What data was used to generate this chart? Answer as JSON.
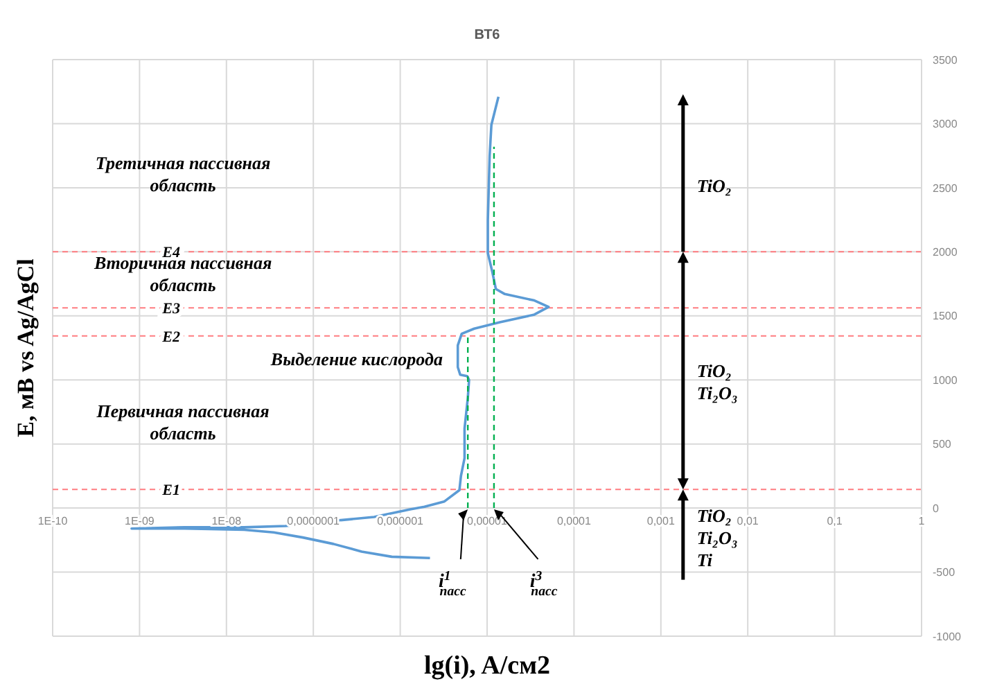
{
  "chart_data": {
    "type": "line",
    "title": "ВТ6",
    "xlabel": "lg(i), A/см2",
    "ylabel": "E, мВ vs Ag/AgCl",
    "log": "x",
    "grid": true,
    "legend": false,
    "marker": "none",
    "xlim": [
      1e-10,
      1
    ],
    "xticks": [
      {
        "value": 1e-10,
        "label": "1E-10"
      },
      {
        "value": 1e-09,
        "label": "1E-09"
      },
      {
        "value": 1e-08,
        "label": "1E-08"
      },
      {
        "value": 1e-07,
        "label": "0,0000001"
      },
      {
        "value": 1e-06,
        "label": "0,000001"
      },
      {
        "value": 1e-05,
        "label": "0,00001"
      },
      {
        "value": 0.0001,
        "label": "0,0001"
      },
      {
        "value": 0.001,
        "label": "0,001"
      },
      {
        "value": 0.01,
        "label": "0,01"
      },
      {
        "value": 0.1,
        "label": "0,1"
      },
      {
        "value": 1,
        "label": "1"
      }
    ],
    "ylim": [
      -1000,
      3500
    ],
    "yticks": [
      -1000,
      -500,
      0,
      500,
      1000,
      1500,
      2000,
      2500,
      3000,
      3500
    ],
    "series": [
      {
        "color": "#5b9bd5",
        "line_style": "solid",
        "x": [
          2.2e-06,
          8e-07,
          3.6e-07,
          1.7e-07,
          7.6e-08,
          3.5e-08,
          1.6e-08,
          3.3e-09,
          8.1e-10,
          3.3e-09,
          1.6e-08,
          4.8e-08,
          1.7e-07,
          5e-07,
          1.3e-06,
          1.9e-06,
          3.2e-06,
          4.8e-06,
          5e-06,
          5.5e-06,
          5.5e-06,
          6e-06,
          6.2e-06,
          5.9e-06,
          4.9e-06,
          4.6e-06,
          4.6e-06,
          5.1e-06,
          7.1e-06,
          1.4e-05,
          3.5e-05,
          5.1e-05,
          3.5e-05,
          1.6e-05,
          1.26e-05,
          1.15e-05,
          1.02e-05,
          1.02e-05,
          1.07e-05,
          1.12e-05,
          1.35e-05
        ],
        "values": [
          -390,
          -380,
          -340,
          -280,
          -230,
          -190,
          -170,
          -160,
          -160,
          -150,
          -150,
          -140,
          -100,
          -70,
          -10,
          10,
          50,
          140,
          250,
          390,
          620,
          860,
          1000,
          1030,
          1040,
          1100,
          1270,
          1360,
          1400,
          1450,
          1510,
          1570,
          1620,
          1670,
          1710,
          1840,
          1990,
          2250,
          2750,
          2990,
          3210
        ]
      },
      {
        "color": "#00b050",
        "line_style": "dashed",
        "x": [
          6e-06,
          6e-06
        ],
        "values": [
          0,
          1340
        ]
      },
      {
        "color": "#00b050",
        "line_style": "dashed",
        "x": [
          1.2e-05,
          1.2e-05
        ],
        "values": [
          0,
          2820
        ]
      }
    ],
    "ref_lines": [
      {
        "axis": "y",
        "value": 145,
        "label": "E1",
        "color": "#ff7c80",
        "line_style": "dashed"
      },
      {
        "axis": "y",
        "value": 1343,
        "label": "E2",
        "color": "#ff7c80",
        "line_style": "dashed"
      },
      {
        "axis": "y",
        "value": 1563,
        "label": "E3",
        "color": "#ff7c80",
        "line_style": "dashed"
      },
      {
        "axis": "y",
        "value": 2000,
        "label": "E4",
        "color": "#ff7c80",
        "line_style": "dashed"
      }
    ],
    "annotations": [
      "Третичная пассивная\nобласть",
      "Вторичная пассивная\nобласть",
      "Первичная пассивная\nобласть",
      "Выделение кислорода",
      "TiO₂",
      "TiO₂\nTi₂O₃",
      {
        "text": "TiO₂\nTi₂O₃\nTi",
        "x": 0.0018,
        "y": 145
      },
      "i$^{1}$$_{пасс}$",
      "i$^{3}$$_{пасс}$"
    ]
  }
}
